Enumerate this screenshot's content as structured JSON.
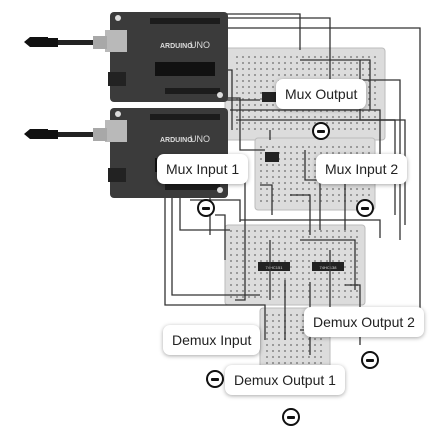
{
  "boards": [
    {
      "brand": "ARDUINO",
      "model": "UNO"
    },
    {
      "brand": "ARDUINO",
      "model": "UNO"
    }
  ],
  "chips": [
    "74HC151",
    "74HC138"
  ],
  "labels": {
    "mux_output": "Mux Output",
    "mux_input_1": "Mux Input 1",
    "mux_input_2": "Mux Input 2",
    "demux_input": "Demux Input",
    "demux_output_1": "Demux Output 1",
    "demux_output_2": "Demux Output 2"
  },
  "colors": {
    "board": "#3b3b3b",
    "breadboard": "#dcdcdc",
    "wire": "#333333",
    "cable_plug": "#111111"
  },
  "icons": [
    "usb-cable-icon",
    "probe-icon"
  ]
}
